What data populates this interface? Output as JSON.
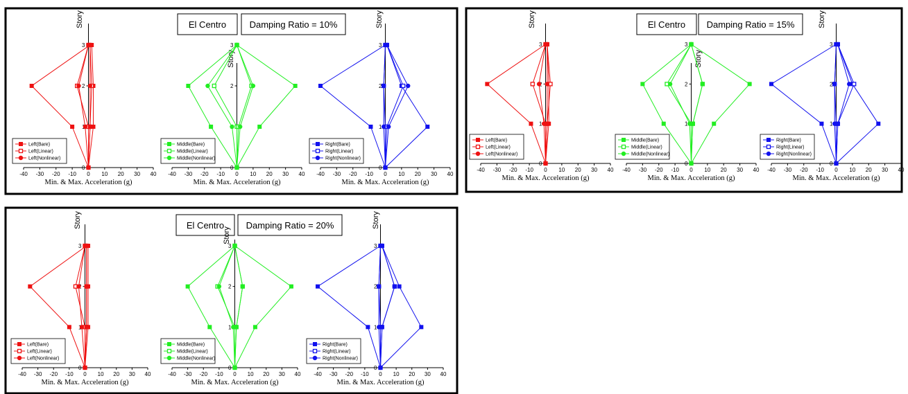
{
  "figure": {
    "earthquake_label": "El Centro",
    "xlabel": "Min. & Max. Acceleration (g)",
    "ylabel": "Story",
    "xticks": [
      -40,
      -30,
      -20,
      -10,
      0,
      10,
      20,
      30,
      40
    ],
    "yticks": [
      0,
      1,
      2,
      3
    ],
    "colors": {
      "left": "#ee1111",
      "middle": "#22ee22",
      "right": "#1111ee"
    }
  },
  "chart_data": [
    {
      "type": "line",
      "damping_label": "Damping Ratio = 10%",
      "xlim": [
        -40,
        40
      ],
      "ylim": [
        0,
        3
      ],
      "subplots": [
        {
          "group": "left",
          "legend": [
            "Left(Bare)",
            "Left(Linear)",
            "Left(Nonlinear)"
          ],
          "series": [
            {
              "name": "Left(Bare)",
              "marker": "square-filled",
              "min": [
                -10,
                -35,
                1
              ],
              "max": [
                3,
                3,
                2
              ]
            },
            {
              "name": "Left(Linear)",
              "marker": "square-open",
              "min": [
                0,
                -7,
                0
              ],
              "max": [
                1,
                2,
                1
              ]
            },
            {
              "name": "Left(Nonlinear)",
              "marker": "circle-filled",
              "min": [
                -2,
                -6,
                0
              ],
              "max": [
                1,
                1,
                1
              ]
            }
          ]
        },
        {
          "group": "middle",
          "legend": [
            "Middle(Bare)",
            "Middle(Linear)",
            "Middle(Nonlinear)"
          ],
          "series": [
            {
              "name": "Middle(Bare)",
              "marker": "square-filled",
              "min": [
                -16,
                -30,
                0
              ],
              "max": [
                14,
                36,
                0
              ]
            },
            {
              "name": "Middle(Linear)",
              "marker": "square-open",
              "min": [
                0,
                -14,
                0
              ],
              "max": [
                1,
                9,
                0
              ]
            },
            {
              "name": "Middle(Nonlinear)",
              "marker": "circle-filled",
              "min": [
                -3,
                -18,
                0
              ],
              "max": [
                2,
                10,
                0
              ]
            }
          ]
        },
        {
          "group": "right",
          "legend": [
            "Right(Bare)",
            "Right(Linear)",
            "Right(Nonlinear)"
          ],
          "series": [
            {
              "name": "Right(Bare)",
              "marker": "square-filled",
              "min": [
                -9,
                -40,
                0
              ],
              "max": [
                26,
                10,
                1
              ]
            },
            {
              "name": "Right(Linear)",
              "marker": "square-open",
              "min": [
                0,
                -1,
                0
              ],
              "max": [
                1,
                11,
                1
              ]
            },
            {
              "name": "Right(Nonlinear)",
              "marker": "circle-filled",
              "min": [
                -1,
                -1,
                0
              ],
              "max": [
                2,
                14,
                1
              ]
            }
          ]
        }
      ]
    },
    {
      "type": "line",
      "damping_label": "Damping Ratio = 15%",
      "xlim": [
        -40,
        40
      ],
      "ylim": [
        0,
        3
      ],
      "subplots": [
        {
          "group": "left",
          "legend": [
            "Left(Bare)",
            "Left(Linear)",
            "Left(Nonlinear)"
          ],
          "series": [
            {
              "name": "Left(Bare)",
              "marker": "square-filled",
              "min": [
                -9,
                -36,
                0
              ],
              "max": [
                2,
                2,
                1
              ]
            },
            {
              "name": "Left(Linear)",
              "marker": "square-open",
              "min": [
                0,
                -8,
                0
              ],
              "max": [
                1,
                3,
                1
              ]
            },
            {
              "name": "Left(Nonlinear)",
              "marker": "circle-filled",
              "min": [
                -1,
                -4,
                0
              ],
              "max": [
                1,
                1,
                1
              ]
            }
          ]
        },
        {
          "group": "middle",
          "legend": [
            "Middle(Bare)",
            "Middle(Linear)",
            "Middle(Nonlinear)"
          ],
          "series": [
            {
              "name": "Middle(Bare)",
              "marker": "square-filled",
              "min": [
                -17,
                -30,
                0
              ],
              "max": [
                14,
                36,
                0
              ]
            },
            {
              "name": "Middle(Linear)",
              "marker": "square-open",
              "min": [
                0,
                -15,
                0
              ],
              "max": [
                1,
                7,
                0
              ]
            },
            {
              "name": "Middle(Nonlinear)",
              "marker": "circle-filled",
              "min": [
                -1,
                -13,
                0
              ],
              "max": [
                1,
                7,
                0
              ]
            }
          ]
        },
        {
          "group": "right",
          "legend": [
            "Right(Bare)",
            "Right(Linear)",
            "Right(Nonlinear)"
          ],
          "series": [
            {
              "name": "Right(Bare)",
              "marker": "square-filled",
              "min": [
                -9,
                -40,
                0
              ],
              "max": [
                26,
                10,
                1
              ]
            },
            {
              "name": "Right(Linear)",
              "marker": "square-open",
              "min": [
                0,
                -1,
                0
              ],
              "max": [
                1,
                11,
                1
              ]
            },
            {
              "name": "Right(Nonlinear)",
              "marker": "circle-filled",
              "min": [
                -1,
                -1,
                0
              ],
              "max": [
                1,
                8,
                1
              ]
            }
          ]
        }
      ]
    },
    {
      "type": "line",
      "damping_label": "Damping Ratio = 20%",
      "xlim": [
        -40,
        40
      ],
      "ylim": [
        0,
        3
      ],
      "subplots": [
        {
          "group": "left",
          "legend": [
            "Left(Bare)",
            "Left(Linear)",
            "Left(Nonlinear)"
          ],
          "series": [
            {
              "name": "Left(Bare)",
              "marker": "square-filled",
              "min": [
                -10,
                -35,
                1
              ],
              "max": [
                2,
                2,
                2
              ]
            },
            {
              "name": "Left(Linear)",
              "marker": "square-open",
              "min": [
                0,
                -6,
                0
              ],
              "max": [
                1,
                1,
                1
              ]
            },
            {
              "name": "Left(Nonlinear)",
              "marker": "circle-filled",
              "min": [
                -2,
                -4,
                0
              ],
              "max": [
                1,
                1,
                1
              ]
            }
          ]
        },
        {
          "group": "middle",
          "legend": [
            "Middle(Bare)",
            "Middle(Linear)",
            "Middle(Nonlinear)"
          ],
          "series": [
            {
              "name": "Middle(Bare)",
              "marker": "square-filled",
              "min": [
                -16,
                -30,
                0
              ],
              "max": [
                13,
                36,
                0
              ]
            },
            {
              "name": "Middle(Linear)",
              "marker": "square-open",
              "min": [
                0,
                -11,
                0
              ],
              "max": [
                1,
                5,
                0
              ]
            },
            {
              "name": "Middle(Nonlinear)",
              "marker": "circle-filled",
              "min": [
                -1,
                -10,
                0
              ],
              "max": [
                1,
                5,
                0
              ]
            }
          ]
        },
        {
          "group": "right",
          "legend": [
            "Right(Bare)",
            "Right(Linear)",
            "Right(Nonlinear)"
          ],
          "series": [
            {
              "name": "Right(Bare)",
              "marker": "square-filled",
              "min": [
                -8,
                -40,
                0
              ],
              "max": [
                26,
                12,
                1
              ]
            },
            {
              "name": "Right(Linear)",
              "marker": "square-open",
              "min": [
                0,
                -1,
                0
              ],
              "max": [
                1,
                9,
                1
              ]
            },
            {
              "name": "Right(Nonlinear)",
              "marker": "circle-filled",
              "min": [
                -1,
                -1,
                0
              ],
              "max": [
                1,
                9,
                1
              ]
            }
          ]
        }
      ]
    }
  ]
}
